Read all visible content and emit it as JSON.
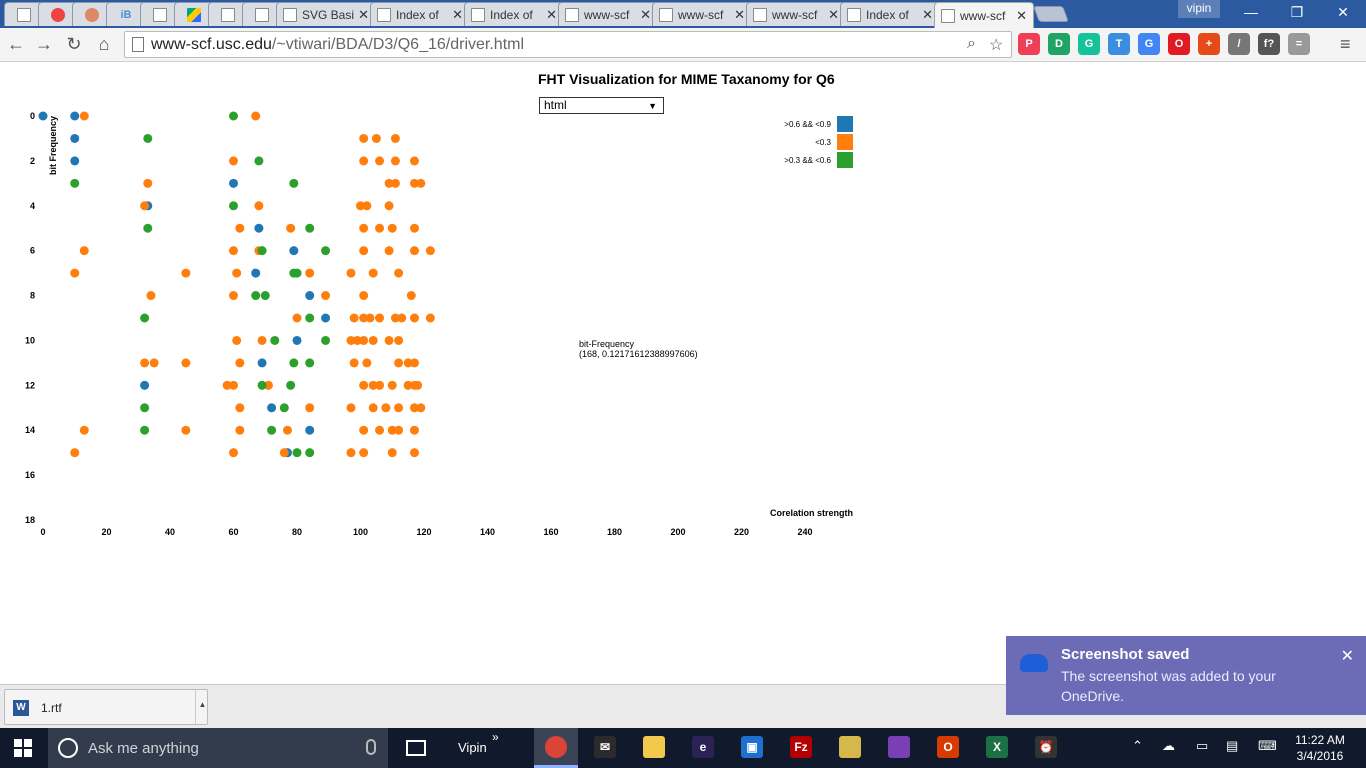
{
  "browser": {
    "tabs": [
      {
        "label": "",
        "icon": "page-icon"
      },
      {
        "label": "",
        "icon": "chrome-icon"
      },
      {
        "label": "",
        "icon": "hand-icon"
      },
      {
        "label": "iB",
        "icon": "ib-icon"
      },
      {
        "label": "",
        "icon": "page-icon"
      },
      {
        "label": "",
        "icon": "google-drive-icon"
      },
      {
        "label": "",
        "icon": "page-icon"
      },
      {
        "label": "",
        "icon": "page-icon"
      },
      {
        "label": "SVG Basi",
        "icon": "page-icon"
      },
      {
        "label": "Index of",
        "icon": "page-icon"
      },
      {
        "label": "Index of",
        "icon": "page-icon"
      },
      {
        "label": "www-scf",
        "icon": "page-icon"
      },
      {
        "label": "www-scf",
        "icon": "page-icon"
      },
      {
        "label": "www-scf",
        "icon": "page-icon"
      },
      {
        "label": "Index of",
        "icon": "page-icon"
      },
      {
        "label": "www-scf",
        "icon": "page-icon",
        "active": true
      }
    ],
    "user": "vipin",
    "url_host": "www-scf.usc.edu",
    "url_path": "/~vtiwari/BDA/D3/Q6_16/driver.html",
    "extensions": [
      {
        "name": "pocket-icon",
        "glyph": "P",
        "color": "#ef3f56"
      },
      {
        "name": "google-drive-icon",
        "glyph": "D",
        "color": "#1fa463"
      },
      {
        "name": "grammarly-icon",
        "glyph": "G",
        "color": "#15c39a"
      },
      {
        "name": "timer-icon",
        "glyph": "T",
        "color": "#3b8de0"
      },
      {
        "name": "google-translate-icon",
        "glyph": "G",
        "color": "#4285f4"
      },
      {
        "name": "opera-icon",
        "glyph": "O",
        "color": "#e01b24"
      },
      {
        "name": "addon-icon",
        "glyph": "+",
        "color": "#e64a19"
      },
      {
        "name": "eyedropper-icon",
        "glyph": "/",
        "color": "#777777"
      },
      {
        "name": "fonts-icon",
        "glyph": "f?",
        "color": "#555555"
      },
      {
        "name": "notes-icon",
        "glyph": "=",
        "color": "#999999"
      }
    ]
  },
  "page": {
    "title": "FHT Visualization for MIME Taxanomy for Q6",
    "select_value": "html",
    "tooltip_line1": "bit-Frequency",
    "tooltip_line2": "(168, 0.12171612388997606)"
  },
  "chart_data": {
    "type": "scatter",
    "xlabel": "Corelation strength",
    "ylabel": "bit Frequency",
    "xlim": [
      0,
      240
    ],
    "ylim": [
      0,
      18
    ],
    "x_ticks": [
      0,
      20,
      40,
      60,
      80,
      100,
      120,
      140,
      160,
      180,
      200,
      220,
      240
    ],
    "y_ticks": [
      0,
      2,
      4,
      6,
      8,
      10,
      12,
      14,
      16,
      18
    ],
    "legend_position": "top-right",
    "series": [
      {
        "name": ">0.6 && <0.9",
        "color": "#1f77b4",
        "points": [
          [
            0,
            0
          ],
          [
            10,
            0
          ],
          [
            10,
            1
          ],
          [
            10,
            2
          ],
          [
            60,
            3
          ],
          [
            33,
            4
          ],
          [
            68,
            5
          ],
          [
            79,
            6
          ],
          [
            67,
            7
          ],
          [
            84,
            8
          ],
          [
            89,
            9
          ],
          [
            80,
            10
          ],
          [
            69,
            11
          ],
          [
            32,
            12
          ],
          [
            72,
            13
          ],
          [
            84,
            14
          ],
          [
            77,
            15
          ]
        ]
      },
      {
        "name": "<0.3",
        "color": "#ff7f0e",
        "points": [
          [
            13,
            0
          ],
          [
            67,
            0
          ],
          [
            101,
            1
          ],
          [
            105,
            1
          ],
          [
            111,
            1
          ],
          [
            60,
            2
          ],
          [
            101,
            2
          ],
          [
            106,
            2
          ],
          [
            111,
            2
          ],
          [
            117,
            2
          ],
          [
            33,
            3
          ],
          [
            109,
            3
          ],
          [
            111,
            3
          ],
          [
            117,
            3
          ],
          [
            119,
            3
          ],
          [
            32,
            4
          ],
          [
            68,
            4
          ],
          [
            100,
            4
          ],
          [
            102,
            4
          ],
          [
            109,
            4
          ],
          [
            62,
            5
          ],
          [
            78,
            5
          ],
          [
            101,
            5
          ],
          [
            106,
            5
          ],
          [
            110,
            5
          ],
          [
            117,
            5
          ],
          [
            13,
            6
          ],
          [
            60,
            6
          ],
          [
            68,
            6
          ],
          [
            101,
            6
          ],
          [
            109,
            6
          ],
          [
            117,
            6
          ],
          [
            122,
            6
          ],
          [
            10,
            7
          ],
          [
            45,
            7
          ],
          [
            61,
            7
          ],
          [
            84,
            7
          ],
          [
            97,
            7
          ],
          [
            104,
            7
          ],
          [
            112,
            7
          ],
          [
            34,
            8
          ],
          [
            60,
            8
          ],
          [
            89,
            8
          ],
          [
            101,
            8
          ],
          [
            116,
            8
          ],
          [
            80,
            9
          ],
          [
            98,
            9
          ],
          [
            101,
            9
          ],
          [
            103,
            9
          ],
          [
            106,
            9
          ],
          [
            111,
            9
          ],
          [
            113,
            9
          ],
          [
            117,
            9
          ],
          [
            122,
            9
          ],
          [
            61,
            10
          ],
          [
            69,
            10
          ],
          [
            97,
            10
          ],
          [
            99,
            10
          ],
          [
            101,
            10
          ],
          [
            104,
            10
          ],
          [
            109,
            10
          ],
          [
            112,
            10
          ],
          [
            32,
            11
          ],
          [
            35,
            11
          ],
          [
            45,
            11
          ],
          [
            62,
            11
          ],
          [
            98,
            11
          ],
          [
            102,
            11
          ],
          [
            112,
            11
          ],
          [
            115,
            11
          ],
          [
            117,
            11
          ],
          [
            58,
            12
          ],
          [
            60,
            12
          ],
          [
            71,
            12
          ],
          [
            101,
            12
          ],
          [
            104,
            12
          ],
          [
            106,
            12
          ],
          [
            110,
            12
          ],
          [
            115,
            12
          ],
          [
            117,
            12
          ],
          [
            118,
            12
          ],
          [
            62,
            13
          ],
          [
            84,
            13
          ],
          [
            97,
            13
          ],
          [
            104,
            13
          ],
          [
            108,
            13
          ],
          [
            112,
            13
          ],
          [
            117,
            13
          ],
          [
            119,
            13
          ],
          [
            13,
            14
          ],
          [
            45,
            14
          ],
          [
            62,
            14
          ],
          [
            77,
            14
          ],
          [
            101,
            14
          ],
          [
            106,
            14
          ],
          [
            110,
            14
          ],
          [
            112,
            14
          ],
          [
            117,
            14
          ],
          [
            10,
            15
          ],
          [
            60,
            15
          ],
          [
            76,
            15
          ],
          [
            97,
            15
          ],
          [
            101,
            15
          ],
          [
            110,
            15
          ],
          [
            117,
            15
          ]
        ]
      },
      {
        "name": ">0.3 && <0.6",
        "color": "#2ca02c",
        "points": [
          [
            60,
            0
          ],
          [
            33,
            1
          ],
          [
            68,
            2
          ],
          [
            10,
            3
          ],
          [
            79,
            3
          ],
          [
            60,
            4
          ],
          [
            33,
            5
          ],
          [
            84,
            5
          ],
          [
            69,
            6
          ],
          [
            89,
            6
          ],
          [
            79,
            7
          ],
          [
            80,
            7
          ],
          [
            67,
            8
          ],
          [
            70,
            8
          ],
          [
            32,
            9
          ],
          [
            84,
            9
          ],
          [
            73,
            10
          ],
          [
            89,
            10
          ],
          [
            79,
            11
          ],
          [
            84,
            11
          ],
          [
            69,
            12
          ],
          [
            78,
            12
          ],
          [
            32,
            13
          ],
          [
            76,
            13
          ],
          [
            32,
            14
          ],
          [
            72,
            14
          ],
          [
            80,
            15
          ],
          [
            84,
            15
          ]
        ]
      }
    ]
  },
  "downloads": {
    "file_name": "1.rtf"
  },
  "toast": {
    "title": "Screenshot saved",
    "body": "The screenshot was added to your OneDrive."
  },
  "taskbar": {
    "search_placeholder": "Ask me anything",
    "user_label": "Vipin",
    "more": "»",
    "apps": [
      {
        "name": "chrome-app",
        "glyph": "",
        "color": "#db4437",
        "active": true
      },
      {
        "name": "mail-app",
        "glyph": "✉",
        "color": "#2b2b2b"
      },
      {
        "name": "file-explorer-app",
        "glyph": "",
        "color": "#f2c94c"
      },
      {
        "name": "eclipse-app",
        "glyph": "e",
        "color": "#2c2255"
      },
      {
        "name": "remote-app",
        "glyph": "▣",
        "color": "#1e6fd0"
      },
      {
        "name": "filezilla-app",
        "glyph": "Fz",
        "color": "#b30000"
      },
      {
        "name": "notes-app",
        "glyph": "",
        "color": "#d4b84a"
      },
      {
        "name": "media-app",
        "glyph": "",
        "color": "#7b3fb5"
      },
      {
        "name": "office-app",
        "glyph": "O",
        "color": "#d83b01"
      },
      {
        "name": "excel-app",
        "glyph": "X",
        "color": "#1d7044"
      },
      {
        "name": "alarm-app",
        "glyph": "⏰",
        "color": "#333333"
      }
    ],
    "time": "11:22 AM",
    "date": "3/4/2016"
  }
}
